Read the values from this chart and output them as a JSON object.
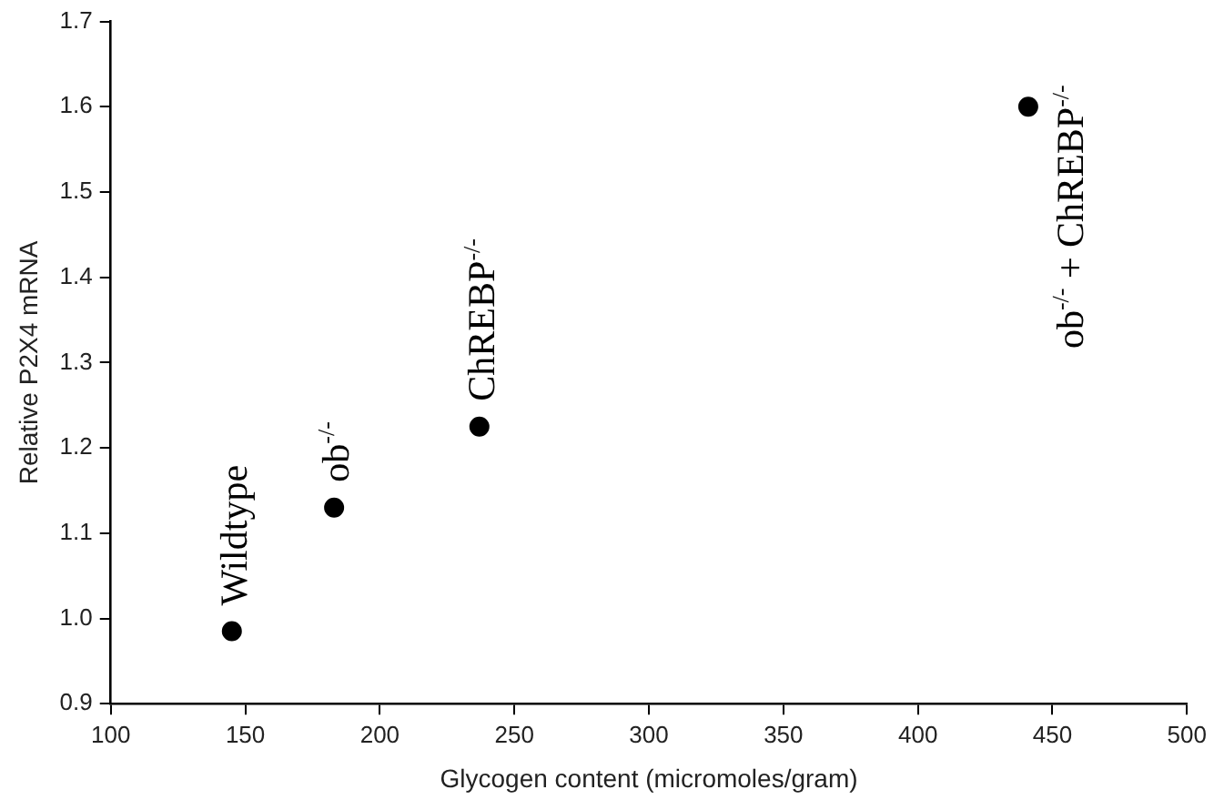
{
  "chart_data": {
    "type": "scatter",
    "xlabel": "Glycogen content (micromoles/gram)",
    "ylabel": "Relative P2X4 mRNA",
    "x": [
      145,
      183,
      237,
      441
    ],
    "values": [
      0.985,
      1.13,
      1.225,
      1.6
    ],
    "color": "#000000",
    "marker": "circle",
    "xlim": [
      100,
      500
    ],
    "xticks": [
      100,
      150,
      200,
      250,
      300,
      350,
      400,
      450,
      500
    ],
    "ylim": [
      0.9,
      1.7
    ],
    "yticks": [
      {
        "value": 0.9,
        "label": "0.9"
      },
      {
        "value": 1.0,
        "label": "1.0"
      },
      {
        "value": 1.1,
        "label": "1.1"
      },
      {
        "value": 1.2,
        "label": "1.2"
      },
      {
        "value": 1.3,
        "label": "1.3"
      },
      {
        "value": 1.4,
        "label": "1.4"
      },
      {
        "value": 1.5,
        "label": "1.5"
      },
      {
        "value": 1.6,
        "label": "1.6"
      },
      {
        "value": 1.7,
        "label": "1.7"
      }
    ],
    "grid": false,
    "legend": false,
    "annotations": [
      {
        "text": "Wildtype",
        "x": 145,
        "y": 0.985
      },
      {
        "text": "ob$^{-/-}$",
        "x": 183,
        "y": 1.13
      },
      {
        "text": "ChREBP$^{-/-}$",
        "x": 237,
        "y": 1.225
      },
      {
        "text": "ob$^{-/-}$ + ChREBP$^{-/-}$",
        "x": 441,
        "y": 1.6
      }
    ]
  }
}
